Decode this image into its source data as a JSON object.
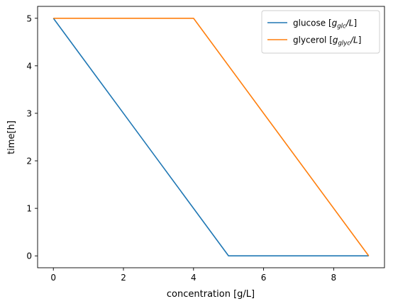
{
  "chart_data": {
    "type": "line",
    "title": "",
    "xlabel": "concentration [g/L]",
    "ylabel": "time[h]",
    "xlim": [
      -0.45,
      9.45
    ],
    "ylim": [
      -0.25,
      5.25
    ],
    "x_ticks": [
      0,
      2,
      4,
      6,
      8
    ],
    "y_ticks": [
      0,
      1,
      2,
      3,
      4,
      5
    ],
    "grid": false,
    "legend_position": "top-right",
    "series": [
      {
        "name_base": "glucose [",
        "name_math": "g",
        "name_sub": "glc",
        "name_tail": "/L]",
        "color": "#1f77b4",
        "x": [
          5,
          4,
          3,
          2,
          1,
          0
        ],
        "y": [
          0,
          1,
          2,
          3,
          4,
          5
        ],
        "extra_points": [
          [
            5,
            0
          ],
          [
            9,
            0
          ]
        ]
      },
      {
        "name_base": "glycerol [",
        "name_math": "g",
        "name_sub": "glyc",
        "name_tail": "/L]",
        "color": "#ff7f0e",
        "x": [
          0,
          4,
          9
        ],
        "y": [
          5,
          5,
          0
        ]
      }
    ]
  }
}
